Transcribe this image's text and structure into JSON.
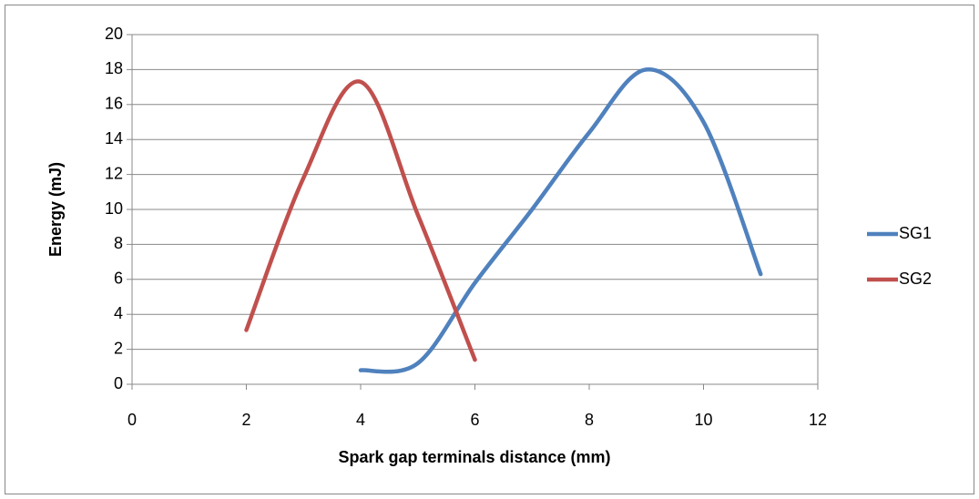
{
  "chart_data": {
    "type": "line",
    "xlabel": "Spark gap terminals distance (mm)",
    "ylabel": "Energy (mJ)",
    "xlim": [
      0,
      12
    ],
    "xticks": [
      0,
      2,
      4,
      6,
      8,
      10,
      12
    ],
    "ylim": [
      0,
      20
    ],
    "yticks": [
      0,
      2,
      4,
      6,
      8,
      10,
      12,
      14,
      16,
      18,
      20
    ],
    "grid": true,
    "smooth": true,
    "legend": "right",
    "series": [
      {
        "name": "SG1",
        "color": "#4f81bd",
        "x": [
          4,
          5,
          6,
          7,
          8,
          9,
          10,
          11
        ],
        "values": [
          0.8,
          1.2,
          5.8,
          10,
          14.4,
          18,
          15,
          6.3
        ]
      },
      {
        "name": "SG2",
        "color": "#c0504d",
        "x": [
          2,
          3,
          4,
          5,
          6
        ],
        "values": [
          3.1,
          11.8,
          17.3,
          9.7,
          1.4
        ]
      }
    ]
  }
}
